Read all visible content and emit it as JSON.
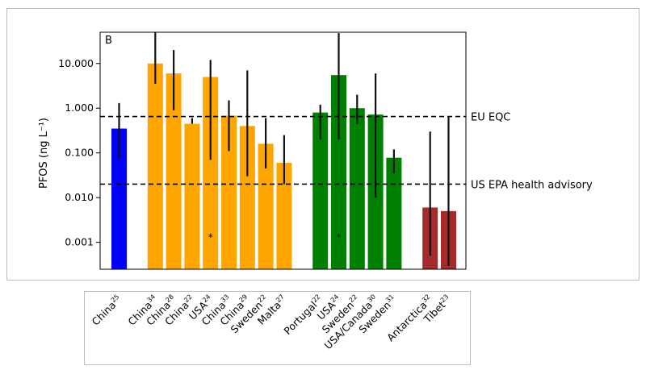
{
  "chart_data": {
    "type": "bar",
    "panel_label": "B",
    "ylabel": "PFOS (ng L⁻¹)",
    "yscale": "log",
    "ylim": [
      0.00025,
      50
    ],
    "yticks": [
      {
        "value": 10,
        "label": "10.000"
      },
      {
        "value": 1,
        "label": "1.000"
      },
      {
        "value": 0.1,
        "label": "0.100"
      },
      {
        "value": 0.01,
        "label": "0.010"
      },
      {
        "value": 0.001,
        "label": "0.001"
      }
    ],
    "reference_lines": [
      {
        "value": 0.65,
        "label": "EU EQC"
      },
      {
        "value": 0.02,
        "label": "US EPA health advisory"
      }
    ],
    "bars": [
      {
        "name": "China",
        "ref": "25",
        "value": 0.35,
        "err_low": 0.07,
        "err_high": 1.3,
        "color": "#0000ff",
        "group": 0,
        "asterisk": false
      },
      {
        "name": "China",
        "ref": "34",
        "value": 10,
        "err_low": 3.5,
        "err_high": 52,
        "color": "#ffa500",
        "group": 1,
        "asterisk": false
      },
      {
        "name": "China",
        "ref": "28",
        "value": 6,
        "err_low": 0.9,
        "err_high": 20,
        "color": "#ffa500",
        "group": 1,
        "asterisk": false
      },
      {
        "name": "China",
        "ref": "22",
        "value": 0.45,
        "err_low": 0.45,
        "err_high": 0.6,
        "color": "#ffa500",
        "group": 1,
        "asterisk": false
      },
      {
        "name": "USA",
        "ref": "24",
        "value": 5,
        "err_low": 0.07,
        "err_high": 12,
        "color": "#ffa500",
        "group": 1,
        "asterisk": true
      },
      {
        "name": "China",
        "ref": "33",
        "value": 0.68,
        "err_low": 0.11,
        "err_high": 1.5,
        "color": "#ffa500",
        "group": 1,
        "asterisk": false
      },
      {
        "name": "China",
        "ref": "29",
        "value": 0.4,
        "err_low": 0.03,
        "err_high": 7,
        "color": "#ffa500",
        "group": 1,
        "asterisk": false
      },
      {
        "name": "Sweden",
        "ref": "22",
        "value": 0.16,
        "err_low": 0.045,
        "err_high": 0.6,
        "color": "#ffa500",
        "group": 1,
        "asterisk": false
      },
      {
        "name": "Malta",
        "ref": "27",
        "value": 0.06,
        "err_low": 0.02,
        "err_high": 0.25,
        "color": "#ffa500",
        "group": 1,
        "asterisk": false
      },
      {
        "name": "Portugal",
        "ref": "22",
        "value": 0.8,
        "err_low": 0.2,
        "err_high": 1.2,
        "color": "#008000",
        "group": 2,
        "asterisk": false
      },
      {
        "name": "USA",
        "ref": "24",
        "value": 5.5,
        "err_low": 0.2,
        "err_high": 48,
        "color": "#008000",
        "group": 2,
        "asterisk": true
      },
      {
        "name": "Sweden",
        "ref": "22",
        "value": 1,
        "err_low": 0.45,
        "err_high": 2,
        "color": "#008000",
        "group": 2,
        "asterisk": false
      },
      {
        "name": "USA/Canada",
        "ref": "30",
        "value": 0.72,
        "err_low": 0.01,
        "err_high": 6,
        "color": "#008000",
        "group": 2,
        "asterisk": false
      },
      {
        "name": "Sweden",
        "ref": "31",
        "value": 0.078,
        "err_low": 0.035,
        "err_high": 0.12,
        "color": "#008000",
        "group": 2,
        "asterisk": false
      },
      {
        "name": "Antarctica",
        "ref": "32",
        "value": 0.006,
        "err_low": 0.0005,
        "err_high": 0.3,
        "color": "#a52a2a",
        "group": 3,
        "asterisk": false
      },
      {
        "name": "Tibet",
        "ref": "23",
        "value": 0.005,
        "err_low": 0.0003,
        "err_high": 0.65,
        "color": "#a52a2a",
        "group": 3,
        "asterisk": false
      }
    ]
  }
}
